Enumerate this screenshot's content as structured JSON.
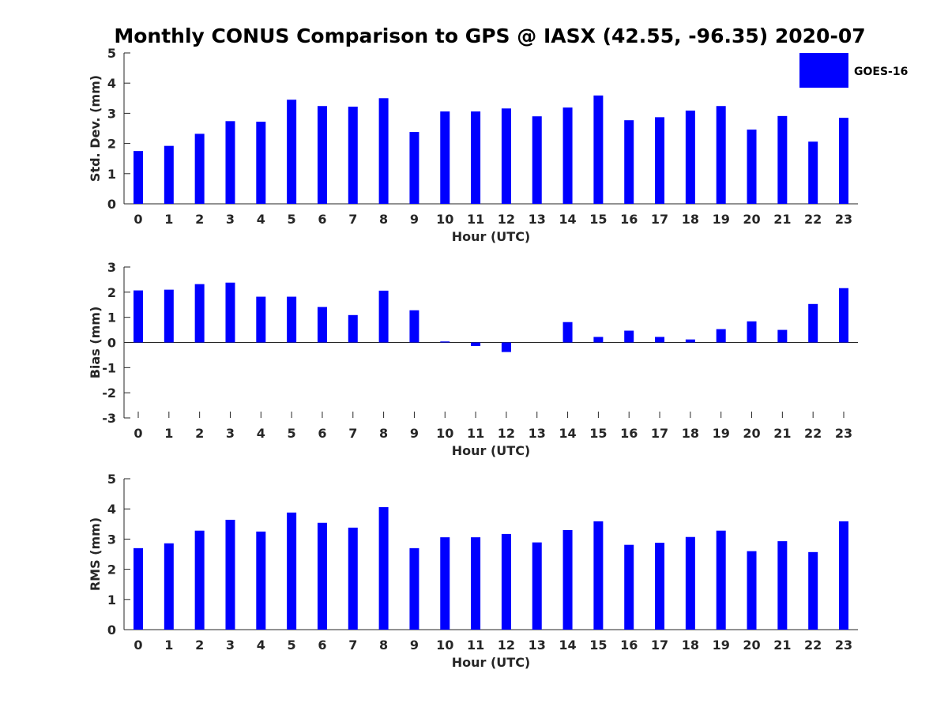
{
  "title": "Monthly CONUS Comparison to GPS @ IASX (42.55, -96.35) 2020-07",
  "legend": {
    "label": "GOES-16",
    "color": "#0000ff",
    "placement": "top-right"
  },
  "bar_color": "#0000ff",
  "chart_data": [
    {
      "type": "bar",
      "name": "std",
      "xlabel": "Hour (UTC)",
      "ylabel": "Std. Dev. (mm)",
      "ylim": [
        0,
        5
      ],
      "yticks": [
        0,
        1,
        2,
        3,
        4,
        5
      ],
      "categories": [
        "0",
        "1",
        "2",
        "3",
        "4",
        "5",
        "6",
        "7",
        "8",
        "9",
        "10",
        "11",
        "12",
        "13",
        "14",
        "15",
        "16",
        "17",
        "18",
        "19",
        "20",
        "21",
        "22",
        "23"
      ],
      "series": [
        {
          "name": "GOES-16",
          "values": [
            1.75,
            1.92,
            2.32,
            2.74,
            2.72,
            3.45,
            3.24,
            3.22,
            3.5,
            2.38,
            3.06,
            3.06,
            3.16,
            2.9,
            3.19,
            3.59,
            2.77,
            2.87,
            3.09,
            3.24,
            2.46,
            2.91,
            2.06,
            2.85
          ]
        }
      ],
      "grid": false
    },
    {
      "type": "bar",
      "name": "bias",
      "xlabel": "Hour (UTC)",
      "ylabel": "Bias (mm)",
      "ylim": [
        -3,
        3
      ],
      "yticks": [
        -3,
        -2,
        -1,
        0,
        1,
        2,
        3
      ],
      "categories": [
        "0",
        "1",
        "2",
        "3",
        "4",
        "5",
        "6",
        "7",
        "8",
        "9",
        "10",
        "11",
        "12",
        "13",
        "14",
        "15",
        "16",
        "17",
        "18",
        "19",
        "20",
        "21",
        "22",
        "23"
      ],
      "series": [
        {
          "name": "GOES-16",
          "values": [
            2.07,
            2.1,
            2.32,
            2.38,
            1.82,
            1.82,
            1.41,
            1.09,
            2.06,
            1.28,
            0.04,
            -0.14,
            -0.38,
            0.0,
            0.81,
            0.22,
            0.47,
            0.22,
            0.12,
            0.53,
            0.84,
            0.5,
            1.53,
            2.16
          ]
        }
      ],
      "grid": false
    },
    {
      "type": "bar",
      "name": "rms",
      "xlabel": "Hour (UTC)",
      "ylabel": "RMS (mm)",
      "ylim": [
        0,
        5
      ],
      "yticks": [
        0,
        1,
        2,
        3,
        4,
        5
      ],
      "categories": [
        "0",
        "1",
        "2",
        "3",
        "4",
        "5",
        "6",
        "7",
        "8",
        "9",
        "10",
        "11",
        "12",
        "13",
        "14",
        "15",
        "16",
        "17",
        "18",
        "19",
        "20",
        "21",
        "22",
        "23"
      ],
      "series": [
        {
          "name": "GOES-16",
          "values": [
            2.7,
            2.86,
            3.28,
            3.64,
            3.25,
            3.88,
            3.54,
            3.38,
            4.06,
            2.7,
            3.06,
            3.06,
            3.17,
            2.89,
            3.3,
            3.59,
            2.81,
            2.88,
            3.07,
            3.28,
            2.6,
            2.93,
            2.57,
            3.59
          ]
        }
      ],
      "grid": false
    }
  ]
}
